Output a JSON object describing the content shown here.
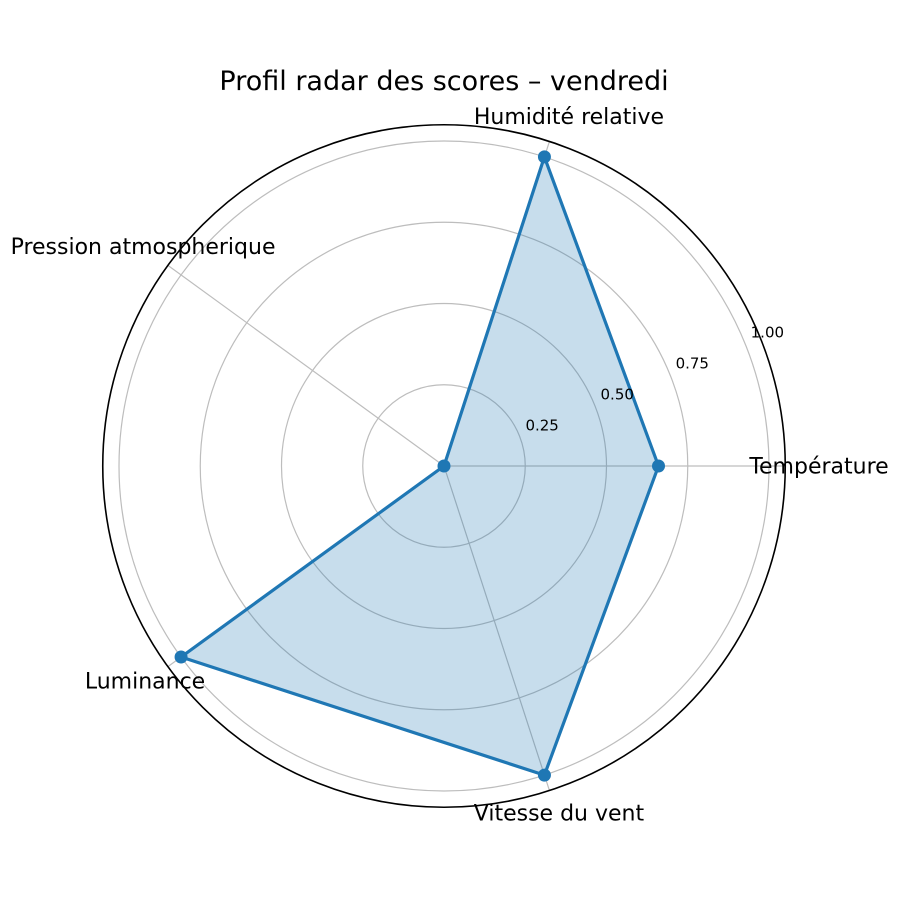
{
  "chart_data": {
    "type": "radar",
    "title": "Profil radar des scores – vendredi",
    "categories": [
      "Température",
      "Humidité relative",
      "Pression atmospherique",
      "Luminance",
      "Vitesse du vent"
    ],
    "values": [
      0.66,
      1.0,
      0.0,
      1.0,
      1.0
    ],
    "angles_deg": [
      0,
      72,
      144,
      216,
      288
    ],
    "direction": "counterclockwise",
    "radial_tick_labels": [
      "0.25",
      "0.50",
      "0.75",
      "1.00"
    ],
    "radial_tick_values": [
      0.25,
      0.5,
      0.75,
      1.0
    ],
    "rmin": 0,
    "rmax": 1.05,
    "rlabel_angle_deg": 22.5,
    "grid": true,
    "legend": null,
    "colors": {
      "line": "#1f77b4",
      "fill": "#1f77b4",
      "fill_opacity": 0.25,
      "grid": "#bdbdbd",
      "outer_ring": "#000000",
      "text": "#000000",
      "background": "#ffffff"
    }
  }
}
